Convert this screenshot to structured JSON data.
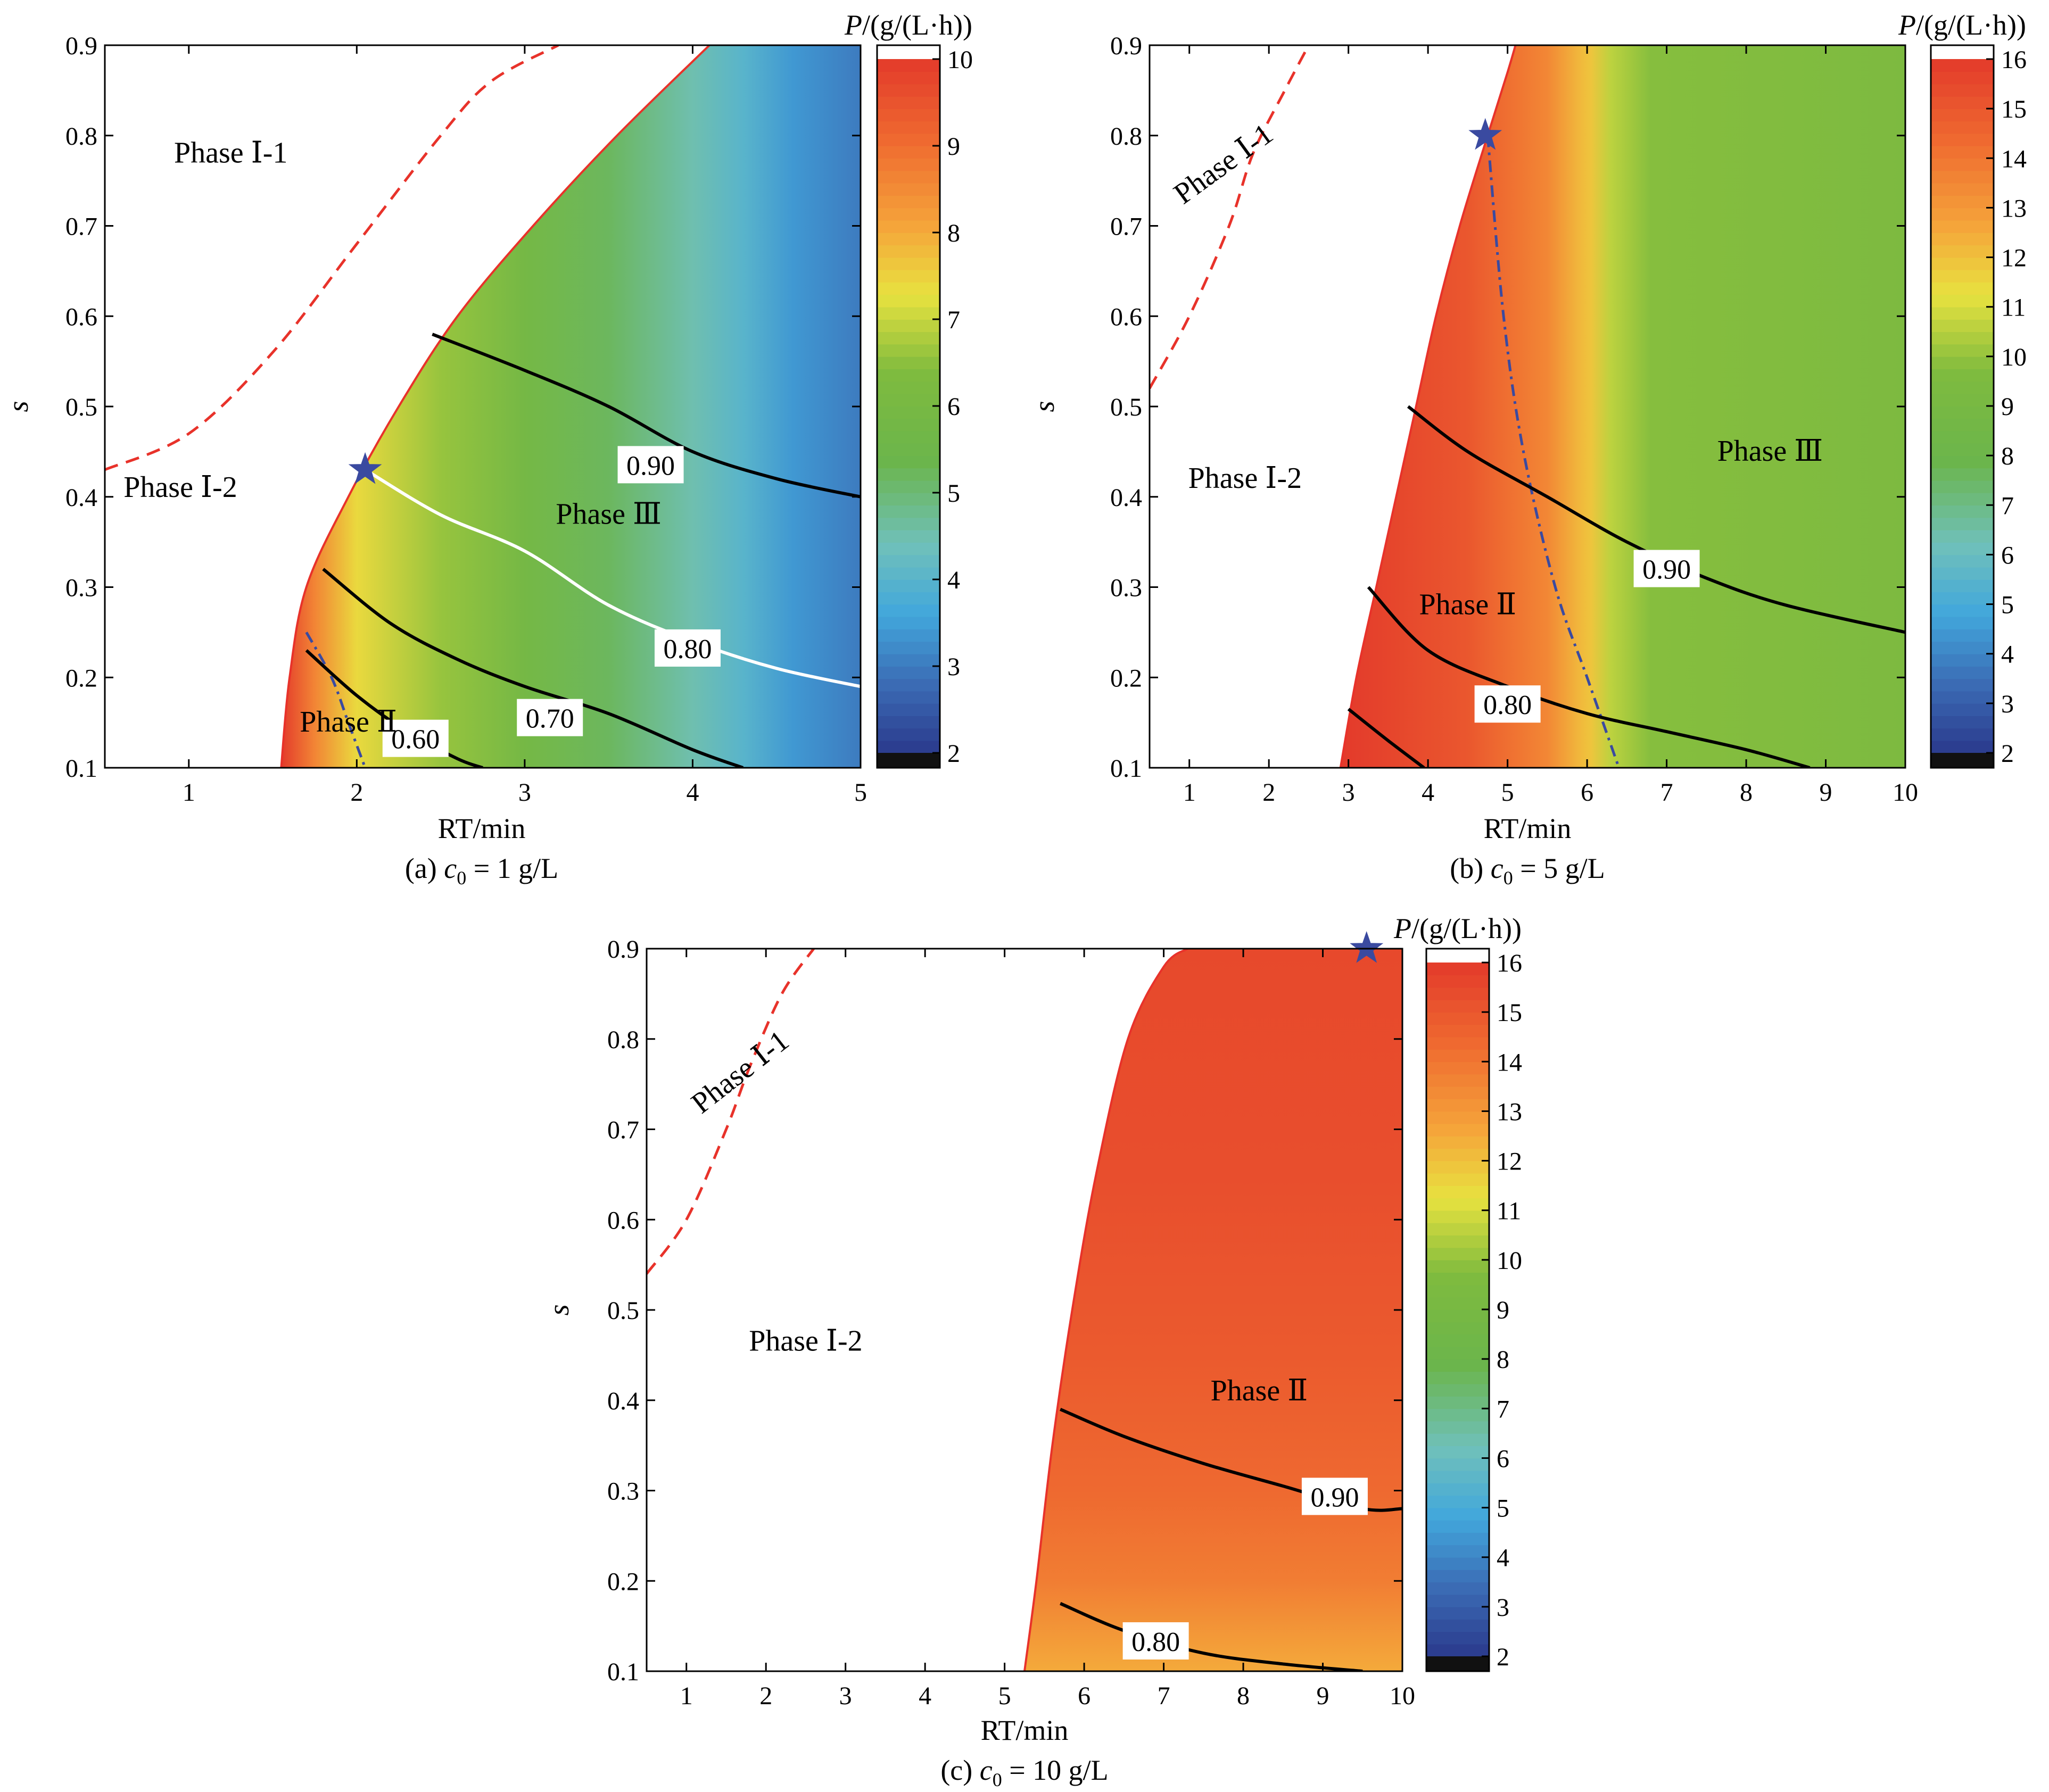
{
  "chart_data": [
    {
      "type": "heatmap",
      "caption": "(a) c0 = 1 g/L",
      "caption_parts": {
        "prefix": "(a) ",
        "var": "c",
        "sub": "0",
        "suffix": " = 1 g/L"
      },
      "xlabel": "RT/min",
      "ylabel": "s",
      "xlim": [
        0.5,
        5
      ],
      "ylim": [
        0.1,
        0.9
      ],
      "xticks": [
        "1",
        "2",
        "3",
        "4",
        "5"
      ],
      "yticks": [
        "0.1",
        "0.2",
        "0.3",
        "0.4",
        "0.5",
        "0.6",
        "0.7",
        "0.8",
        "0.9"
      ],
      "colorbar": {
        "title_var": "P",
        "title_unit": "/(g/(L·h))",
        "ticks": [
          "2",
          "3",
          "4",
          "5",
          "6",
          "7",
          "8",
          "9",
          "10"
        ],
        "range": [
          2,
          10
        ]
      },
      "feasible_boundary": [
        [
          1.55,
          0.1
        ],
        [
          1.6,
          0.2
        ],
        [
          1.7,
          0.3
        ],
        [
          1.95,
          0.4
        ],
        [
          2.25,
          0.5
        ],
        [
          2.6,
          0.6
        ],
        [
          3.05,
          0.7
        ],
        [
          3.55,
          0.8
        ],
        [
          4.1,
          0.9
        ]
      ],
      "intensity_profile": [
        [
          1.55,
          10
        ],
        [
          1.75,
          8.6
        ],
        [
          2.0,
          7.4
        ],
        [
          2.5,
          6.6
        ],
        [
          3.0,
          5.9
        ],
        [
          3.5,
          5.2
        ],
        [
          4.0,
          4.5
        ],
        [
          4.3,
          4.0
        ],
        [
          4.6,
          3.4
        ],
        [
          5.0,
          3.0
        ]
      ],
      "phase_boundary_dashed": [
        [
          0.5,
          0.43
        ],
        [
          1.0,
          0.47
        ],
        [
          1.5,
          0.56
        ],
        [
          2.0,
          0.68
        ],
        [
          2.5,
          0.8
        ],
        [
          2.8,
          0.86
        ],
        [
          3.2,
          0.9
        ]
      ],
      "phase_boundary_dashdot": [
        [
          1.7,
          0.25
        ],
        [
          1.85,
          0.2
        ],
        [
          1.95,
          0.15
        ],
        [
          2.05,
          0.1
        ]
      ],
      "contours": [
        {
          "label": "0.90",
          "color": "#000000",
          "points": [
            [
              2.45,
              0.58
            ],
            [
              3.0,
              0.54
            ],
            [
              3.5,
              0.5
            ],
            [
              4.0,
              0.45
            ],
            [
              4.5,
              0.42
            ],
            [
              5.0,
              0.4
            ]
          ],
          "label_at": [
            3.75,
            0.435
          ]
        },
        {
          "label": "0.80",
          "color": "#ffffff",
          "points": [
            [
              2.05,
              0.43
            ],
            [
              2.5,
              0.38
            ],
            [
              3.0,
              0.34
            ],
            [
              3.5,
              0.28
            ],
            [
              4.0,
              0.24
            ],
            [
              4.5,
              0.21
            ],
            [
              5.0,
              0.19
            ]
          ],
          "label_at": [
            3.97,
            0.232
          ]
        },
        {
          "label": "0.70",
          "color": "#000000",
          "points": [
            [
              1.8,
              0.32
            ],
            [
              2.2,
              0.26
            ],
            [
              2.6,
              0.22
            ],
            [
              3.0,
              0.19
            ],
            [
              3.5,
              0.16
            ],
            [
              4.0,
              0.12
            ],
            [
              4.3,
              0.1
            ]
          ],
          "label_at": [
            3.15,
            0.155
          ]
        },
        {
          "label": "0.60",
          "color": "#000000",
          "points": [
            [
              1.7,
              0.23
            ],
            [
              2.0,
              0.18
            ],
            [
              2.3,
              0.14
            ],
            [
              2.6,
              0.11
            ],
            [
              2.75,
              0.1
            ]
          ],
          "label_at": [
            2.35,
            0.132
          ]
        }
      ],
      "phase_labels": [
        {
          "text": "Phase Ⅰ-1",
          "x": 1.25,
          "y": 0.77,
          "rotate": 0
        },
        {
          "text": "Phase Ⅰ-2",
          "x": 0.95,
          "y": 0.4,
          "rotate": 0
        },
        {
          "text": "Phase Ⅲ",
          "x": 3.5,
          "y": 0.37,
          "rotate": 0
        },
        {
          "text": "Phase Ⅱ",
          "x": 1.95,
          "y": 0.14,
          "rotate": 0
        }
      ],
      "optimum_star": [
        2.05,
        0.43
      ]
    },
    {
      "type": "heatmap",
      "caption": "(b) c0 = 5 g/L",
      "caption_parts": {
        "prefix": "(b) ",
        "var": "c",
        "sub": "0",
        "suffix": " = 5 g/L"
      },
      "xlabel": "RT/min",
      "ylabel": "s",
      "xlim": [
        0.5,
        10
      ],
      "ylim": [
        0.1,
        0.9
      ],
      "xticks": [
        "1",
        "2",
        "3",
        "4",
        "5",
        "6",
        "7",
        "8",
        "9",
        "10"
      ],
      "yticks": [
        "0.1",
        "0.2",
        "0.3",
        "0.4",
        "0.5",
        "0.6",
        "0.7",
        "0.8",
        "0.9"
      ],
      "colorbar": {
        "title_var": "P",
        "title_unit": "/(g/(L·h))",
        "ticks": [
          "2",
          "3",
          "4",
          "5",
          "6",
          "7",
          "8",
          "9",
          "10",
          "11",
          "12",
          "13",
          "14",
          "15",
          "16"
        ],
        "range": [
          2,
          16
        ]
      },
      "feasible_boundary": [
        [
          2.9,
          0.1
        ],
        [
          3.1,
          0.2
        ],
        [
          3.35,
          0.3
        ],
        [
          3.6,
          0.4
        ],
        [
          3.85,
          0.5
        ],
        [
          4.1,
          0.6
        ],
        [
          4.4,
          0.7
        ],
        [
          4.75,
          0.8
        ],
        [
          5.0,
          0.87
        ],
        [
          5.1,
          0.9
        ]
      ],
      "intensity_profile": [
        [
          2.9,
          16
        ],
        [
          4.5,
          15
        ],
        [
          5.0,
          14.2
        ],
        [
          5.5,
          13.5
        ],
        [
          5.9,
          12.2
        ],
        [
          6.05,
          11.9
        ],
        [
          6.3,
          10.6
        ],
        [
          6.8,
          9.8
        ],
        [
          10,
          9.5
        ]
      ],
      "phase_boundary_dashed": [
        [
          0.5,
          0.52
        ],
        [
          1.0,
          0.6
        ],
        [
          1.5,
          0.7
        ],
        [
          1.8,
          0.78
        ],
        [
          2.2,
          0.85
        ],
        [
          2.5,
          0.9
        ]
      ],
      "phase_boundary_dashdot": [
        [
          4.75,
          0.8
        ],
        [
          4.95,
          0.6
        ],
        [
          5.2,
          0.45
        ],
        [
          5.6,
          0.3
        ],
        [
          6.0,
          0.2
        ],
        [
          6.4,
          0.1
        ]
      ],
      "contours": [
        {
          "label": "0.90",
          "color": "#000000",
          "points": [
            [
              3.75,
              0.5
            ],
            [
              4.5,
              0.45
            ],
            [
              5.5,
              0.4
            ],
            [
              6.5,
              0.35
            ],
            [
              7.5,
              0.31
            ],
            [
              8.5,
              0.28
            ],
            [
              10,
              0.25
            ]
          ],
          "label_at": [
            7.0,
            0.32
          ]
        },
        {
          "label": "0.80",
          "color": "#000000",
          "points": [
            [
              3.25,
              0.3
            ],
            [
              4.0,
              0.23
            ],
            [
              5.0,
              0.19
            ],
            [
              6.0,
              0.16
            ],
            [
              7.0,
              0.14
            ],
            [
              8.0,
              0.12
            ],
            [
              8.8,
              0.1
            ]
          ],
          "label_at": [
            5.0,
            0.17
          ]
        },
        {
          "label": "",
          "color": "#000000",
          "points": [
            [
              3.0,
              0.165
            ],
            [
              3.5,
              0.13
            ],
            [
              3.95,
              0.1
            ]
          ],
          "label_at": null
        }
      ],
      "phase_labels": [
        {
          "text": "Phase Ⅰ-1",
          "x": 1.5,
          "y": 0.76,
          "rotate": -36
        },
        {
          "text": "Phase Ⅰ-2",
          "x": 1.7,
          "y": 0.41,
          "rotate": 0
        },
        {
          "text": "Phase Ⅲ",
          "x": 8.3,
          "y": 0.44,
          "rotate": 0
        },
        {
          "text": "Phase Ⅱ",
          "x": 4.5,
          "y": 0.27,
          "rotate": 0
        }
      ],
      "optimum_star": [
        4.72,
        0.8
      ]
    },
    {
      "type": "heatmap",
      "caption": "(c) c0 = 10 g/L",
      "caption_parts": {
        "prefix": "(c) ",
        "var": "c",
        "sub": "0",
        "suffix": " = 10 g/L"
      },
      "xlabel": "RT/min",
      "ylabel": "s",
      "xlim": [
        0.5,
        10
      ],
      "ylim": [
        0.1,
        0.9
      ],
      "xticks": [
        "1",
        "2",
        "3",
        "4",
        "5",
        "6",
        "7",
        "8",
        "9",
        "10"
      ],
      "yticks": [
        "0.1",
        "0.2",
        "0.3",
        "0.4",
        "0.5",
        "0.6",
        "0.7",
        "0.8",
        "0.9"
      ],
      "colorbar": {
        "title_var": "P",
        "title_unit": "/(g/(L·h))",
        "ticks": [
          "2",
          "3",
          "4",
          "5",
          "6",
          "7",
          "8",
          "9",
          "10",
          "11",
          "12",
          "13",
          "14",
          "15",
          "16"
        ],
        "range": [
          2,
          16
        ]
      },
      "feasible_boundary": [
        [
          5.25,
          0.1
        ],
        [
          5.4,
          0.2
        ],
        [
          5.6,
          0.35
        ],
        [
          5.85,
          0.5
        ],
        [
          6.15,
          0.65
        ],
        [
          6.55,
          0.8
        ],
        [
          7.0,
          0.88
        ],
        [
          7.3,
          0.9
        ]
      ],
      "vertical_gradient": [
        [
          0.1,
          12.5
        ],
        [
          0.2,
          13.8
        ],
        [
          0.3,
          14.4
        ],
        [
          0.45,
          14.9
        ],
        [
          0.65,
          15.3
        ],
        [
          0.9,
          15.5
        ]
      ],
      "phase_boundary_dashed": [
        [
          0.5,
          0.54
        ],
        [
          1.0,
          0.6
        ],
        [
          1.5,
          0.7
        ],
        [
          1.8,
          0.77
        ],
        [
          2.2,
          0.85
        ],
        [
          2.6,
          0.9
        ]
      ],
      "phase_boundary_dashdot": [],
      "contours": [
        {
          "label": "0.90",
          "color": "#000000",
          "points": [
            [
              5.7,
              0.39
            ],
            [
              6.5,
              0.36
            ],
            [
              7.5,
              0.33
            ],
            [
              8.5,
              0.305
            ],
            [
              9.5,
              0.28
            ],
            [
              10,
              0.28
            ]
          ],
          "label_at": [
            9.15,
            0.293
          ]
        },
        {
          "label": "0.80",
          "color": "#000000",
          "points": [
            [
              5.7,
              0.175
            ],
            [
              6.5,
              0.145
            ],
            [
              7.5,
              0.12
            ],
            [
              8.5,
              0.108
            ],
            [
              9.5,
              0.1
            ]
          ],
          "label_at": [
            6.9,
            0.133
          ]
        }
      ],
      "phase_labels": [
        {
          "text": "Phase Ⅰ-1",
          "x": 1.75,
          "y": 0.755,
          "rotate": -38
        },
        {
          "text": "Phase Ⅰ-2",
          "x": 2.5,
          "y": 0.455,
          "rotate": 0
        },
        {
          "text": "Phase Ⅱ",
          "x": 8.2,
          "y": 0.4,
          "rotate": 0
        }
      ],
      "optimum_star": [
        9.55,
        0.9
      ]
    }
  ]
}
